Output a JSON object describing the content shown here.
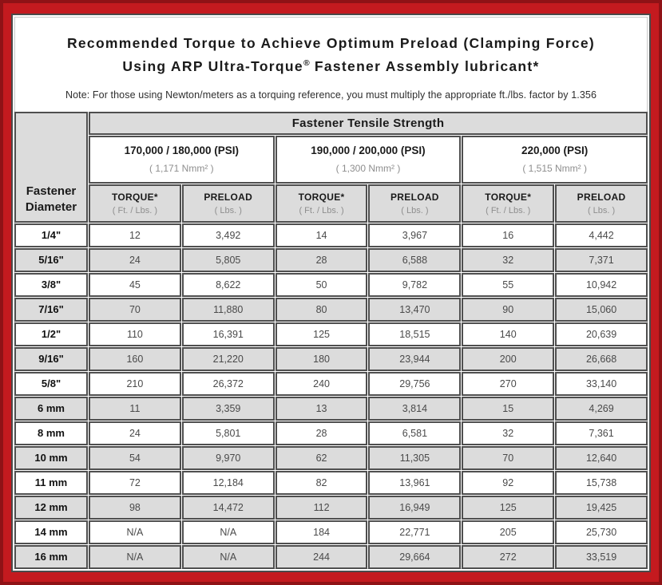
{
  "colors": {
    "frame_red": "#c41a1f",
    "frame_red_dark": "#8f1216",
    "cell_gray": "#dcdcdc",
    "border_dark": "#4f4f4f"
  },
  "title": {
    "line1": "Recommended Torque to Achieve Optimum Preload (Clamping Force)",
    "line2_before_reg": "Using ARP Ultra-Torque",
    "registered_mark": "®",
    "line2_after_reg": " Fastener Assembly lubricant*",
    "note": "Note: For those using Newton/meters as a torquing reference, you must multiply the appropriate ft./lbs. factor by 1.356"
  },
  "table": {
    "corner": {
      "line1": "Fastener",
      "line2": "Diameter"
    },
    "tensile_strength_header": "Fastener Tensile Strength",
    "groups": [
      {
        "psi": "170,000 / 180,000 (PSI)",
        "nmm": "( 1,171 Nmm² )"
      },
      {
        "psi": "190,000 / 200,000 (PSI)",
        "nmm": "( 1,300 Nmm² )"
      },
      {
        "psi": "220,000 (PSI)",
        "nmm": "( 1,515 Nmm² )"
      }
    ],
    "subcolumns": {
      "torque_label": "TORQUE*",
      "torque_unit": "( Ft. / Lbs. )",
      "preload_label": "PRELOAD",
      "preload_unit": "( Lbs. )"
    },
    "rows": [
      {
        "diameter": "1/4\"",
        "values": [
          "12",
          "3,492",
          "14",
          "3,967",
          "16",
          "4,442"
        ]
      },
      {
        "diameter": "5/16\"",
        "values": [
          "24",
          "5,805",
          "28",
          "6,588",
          "32",
          "7,371"
        ]
      },
      {
        "diameter": "3/8\"",
        "values": [
          "45",
          "8,622",
          "50",
          "9,782",
          "55",
          "10,942"
        ]
      },
      {
        "diameter": "7/16\"",
        "values": [
          "70",
          "11,880",
          "80",
          "13,470",
          "90",
          "15,060"
        ]
      },
      {
        "diameter": "1/2\"",
        "values": [
          "110",
          "16,391",
          "125",
          "18,515",
          "140",
          "20,639"
        ]
      },
      {
        "diameter": "9/16\"",
        "values": [
          "160",
          "21,220",
          "180",
          "23,944",
          "200",
          "26,668"
        ]
      },
      {
        "diameter": "5/8\"",
        "values": [
          "210",
          "26,372",
          "240",
          "29,756",
          "270",
          "33,140"
        ]
      },
      {
        "diameter": "6 mm",
        "values": [
          "11",
          "3,359",
          "13",
          "3,814",
          "15",
          "4,269"
        ]
      },
      {
        "diameter": "8 mm",
        "values": [
          "24",
          "5,801",
          "28",
          "6,581",
          "32",
          "7,361"
        ]
      },
      {
        "diameter": "10 mm",
        "values": [
          "54",
          "9,970",
          "62",
          "11,305",
          "70",
          "12,640"
        ]
      },
      {
        "diameter": "11 mm",
        "values": [
          "72",
          "12,184",
          "82",
          "13,961",
          "92",
          "15,738"
        ]
      },
      {
        "diameter": "12 mm",
        "values": [
          "98",
          "14,472",
          "112",
          "16,949",
          "125",
          "19,425"
        ]
      },
      {
        "diameter": "14 mm",
        "values": [
          "N/A",
          "N/A",
          "184",
          "22,771",
          "205",
          "25,730"
        ]
      },
      {
        "diameter": "16 mm",
        "values": [
          "N/A",
          "N/A",
          "244",
          "29,664",
          "272",
          "33,519"
        ]
      }
    ]
  }
}
